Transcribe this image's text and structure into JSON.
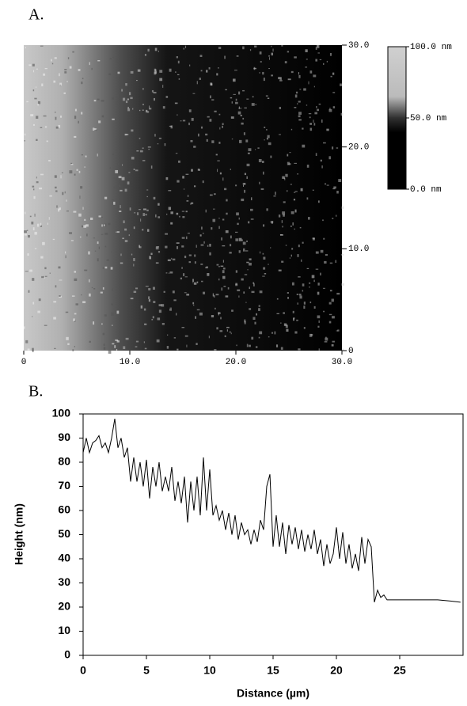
{
  "chart_data": [
    {
      "type": "image",
      "title": "A.",
      "xlim": [
        0,
        30
      ],
      "ylim": [
        0,
        30
      ],
      "xticks": [
        0,
        {
          "value": 10,
          "label": "10.0"
        },
        {
          "value": 20,
          "label": "20.0"
        },
        {
          "value": 30,
          "label": "30.0"
        }
      ],
      "yticks": [
        0,
        {
          "value": 10,
          "label": "10.0"
        },
        {
          "value": 20,
          "label": "20.0"
        },
        {
          "value": 30,
          "label": "30.0"
        }
      ],
      "colorbar": {
        "lim": [
          0,
          100
        ],
        "ticks": [
          {
            "value": 0,
            "label": "0.0 nm"
          },
          {
            "value": 50,
            "label": "50.0 nm"
          },
          {
            "value": 100,
            "label": "100.0 nm"
          }
        ]
      }
    },
    {
      "type": "line",
      "title": "B.",
      "x_label": "Distance (µm)",
      "y_label": "Height (nm)",
      "xlim": [
        0,
        30
      ],
      "ylim": [
        0,
        100
      ],
      "xticks": [
        0,
        5,
        10,
        15,
        20,
        25
      ],
      "yticks": [
        0,
        10,
        20,
        30,
        40,
        50,
        60,
        70,
        80,
        90,
        100
      ],
      "series": [
        {
          "color": "#000000",
          "x": [
            0,
            0.25,
            0.5,
            0.75,
            1,
            1.25,
            1.5,
            1.75,
            2,
            2.25,
            2.5,
            2.75,
            3,
            3.25,
            3.5,
            3.75,
            4,
            4.25,
            4.5,
            4.75,
            5,
            5.25,
            5.5,
            5.75,
            6,
            6.25,
            6.5,
            6.75,
            7,
            7.25,
            7.5,
            7.75,
            8,
            8.25,
            8.5,
            8.75,
            9,
            9.25,
            9.5,
            9.75,
            10,
            10.25,
            10.5,
            10.75,
            11,
            11.25,
            11.5,
            11.75,
            12,
            12.25,
            12.5,
            12.75,
            13,
            13.25,
            13.5,
            13.75,
            14,
            14.25,
            14.5,
            14.75,
            15,
            15.25,
            15.5,
            15.75,
            16,
            16.25,
            16.5,
            16.75,
            17,
            17.25,
            17.5,
            17.75,
            18,
            18.25,
            18.5,
            18.75,
            19,
            19.25,
            19.5,
            19.75,
            20,
            20.25,
            20.5,
            20.75,
            21,
            21.25,
            21.5,
            21.75,
            22,
            22.25,
            22.5,
            22.75,
            23,
            23.25,
            23.5,
            23.75,
            24,
            25,
            26,
            27,
            28,
            29,
            29.8
          ],
          "values": [
            84,
            90,
            84,
            88,
            89,
            91,
            86,
            88,
            84,
            90,
            98,
            86,
            90,
            82,
            86,
            72,
            82,
            72,
            80,
            70,
            81,
            65,
            78,
            70,
            80,
            68,
            74,
            68,
            78,
            64,
            72,
            63,
            74,
            55,
            72,
            60,
            74,
            58,
            82,
            60,
            77,
            58,
            62,
            56,
            60,
            52,
            59,
            50,
            58,
            48,
            55,
            50,
            52,
            46,
            52,
            47,
            56,
            52,
            70,
            75,
            45,
            58,
            45,
            55,
            42,
            54,
            46,
            53,
            44,
            52,
            43,
            50,
            44,
            52,
            42,
            48,
            37,
            46,
            38,
            42,
            53,
            40,
            51,
            38,
            46,
            36,
            42,
            35,
            49,
            38,
            48,
            45,
            22,
            27,
            24,
            25,
            23,
            23,
            23,
            23,
            23,
            22.5,
            22
          ]
        }
      ]
    }
  ]
}
